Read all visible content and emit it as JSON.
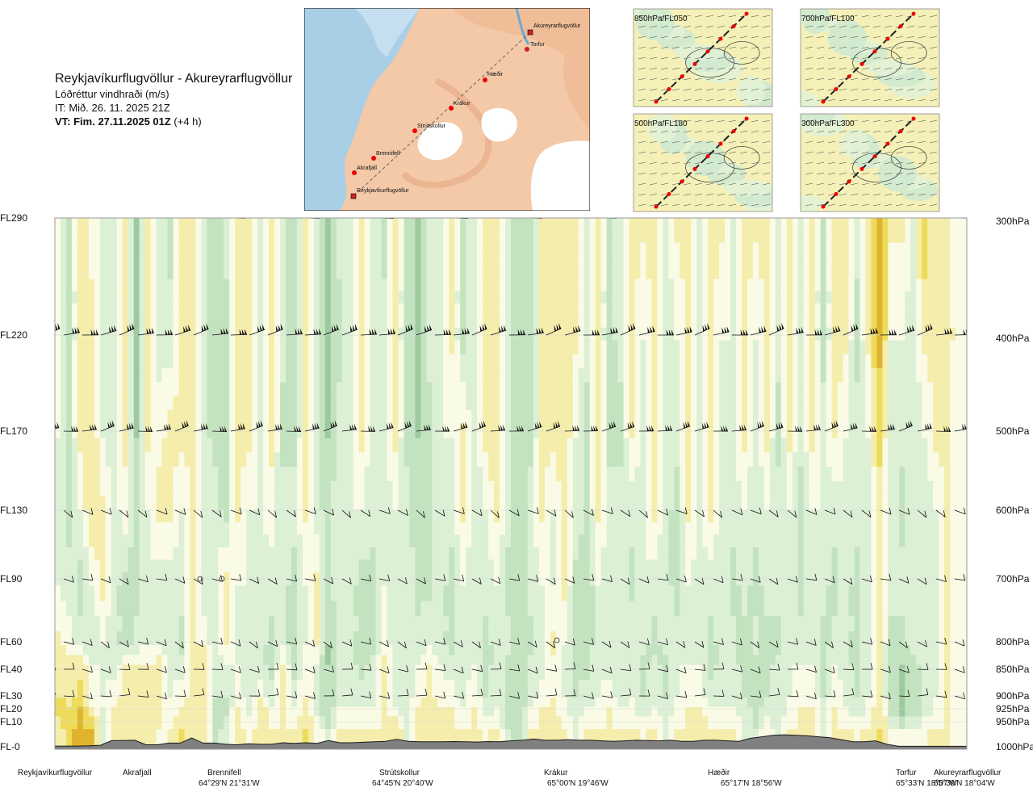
{
  "header": {
    "route": "Reykjavíkurflugvöllur - Akureyrarflugvöllur",
    "parameter": "Lóðréttur vindhraði (m/s)",
    "it": "IT: Mið. 26. 11. 2025 21Z",
    "vt_bold": "VT: Fim. 27.11.2025 01Z",
    "vt_suffix": " (+4 h)"
  },
  "map": {
    "places": [
      "Akureyrarflugvöllur",
      "Torfur",
      "Hæðir",
      "Krákur",
      "Strútskollur",
      "Brennifell",
      "Akrafjall",
      "Reykjavíkurflugvöllur"
    ]
  },
  "thumbnails": [
    {
      "label": "850hPa/FL050"
    },
    {
      "label": "700hPa/FL100"
    },
    {
      "label": "500hPa/FL180"
    },
    {
      "label": "300hPa/FL300"
    }
  ],
  "chart_data": {
    "type": "heatmap",
    "title": "Lóðréttur vindhraði (m/s)",
    "y_levels": [
      {
        "fl": "FL290",
        "hpa": "300hPa"
      },
      {
        "fl": "FL220",
        "hpa": "400hPa"
      },
      {
        "fl": "FL170",
        "hpa": "500hPa"
      },
      {
        "fl": "FL130",
        "hpa": "600hPa"
      },
      {
        "fl": "FL90",
        "hpa": "700hPa"
      },
      {
        "fl": "FL60",
        "hpa": "800hPa"
      },
      {
        "fl": "FL40",
        "hpa": "850hPa"
      },
      {
        "fl": "FL30",
        "hpa": "900hPa"
      },
      {
        "fl": "FL20",
        "hpa": "925hPa"
      },
      {
        "fl": "FL10",
        "hpa": "950hPa"
      },
      {
        "fl": "FL-0",
        "hpa": "1000hPa"
      }
    ],
    "waypoints": [
      {
        "name": "Reykjavíkurflugvöllur",
        "coord": ""
      },
      {
        "name": "Akrafjall",
        "coord": ""
      },
      {
        "name": "Brennifell",
        "coord": "64°29'N 21°31'W"
      },
      {
        "name": "Strútskollur",
        "coord": "64°45'N 20°40'W"
      },
      {
        "name": "Krákur",
        "coord": "65°00'N 19°46'W"
      },
      {
        "name": "Hæðir",
        "coord": "65°17'N 18°56'W"
      },
      {
        "name": "Torfur",
        "coord": "65°33'N 18°07'W"
      },
      {
        "name": "Akureyrarflugvöllur",
        "coord": "65°39'N 18°04'W"
      }
    ],
    "terrain_fl": [
      0.3,
      0.3,
      0.3,
      0.4,
      0.6,
      2.5,
      2.5,
      2.6,
      0.8,
      0.8,
      1.5,
      1.5,
      3.5,
      1.5,
      1.5,
      1.0,
      0.8,
      1.2,
      1.0,
      1.0,
      1.6,
      1.4,
      1.6,
      1.4,
      2.5,
      1.6,
      1.6,
      1.8,
      2.0,
      2.2,
      3.0,
      2.2,
      2.0,
      2.0,
      2.0,
      2.1,
      2.0,
      1.9,
      2.1,
      2.0,
      2.4,
      2.6,
      3.1,
      2.6,
      2.6,
      2.8,
      2.6,
      2.6,
      2.4,
      2.2,
      2.4,
      2.6,
      2.5,
      2.4,
      2.6,
      2.2,
      2.2,
      2.6,
      2.6,
      2.4,
      2.2,
      3.4,
      4.0,
      4.6,
      4.8,
      4.6,
      4.4,
      4.0,
      3.6,
      2.8,
      2.0,
      2.0,
      2.4,
      1.0,
      0.2,
      0.2,
      0.2,
      0.2,
      0.2,
      0.2,
      0.2
    ],
    "levels_fl": [
      0,
      20,
      40,
      60,
      90,
      130,
      170,
      220,
      290
    ],
    "columns_ms": [
      [
        0.1,
        0.3,
        0.2,
        0.1,
        -0.1,
        -0.1,
        -0.1,
        0.0,
        0.0
      ],
      [
        0.3,
        0.3,
        0.1,
        0.0,
        -0.2,
        -0.3,
        -0.3,
        -0.3,
        -0.3
      ],
      [
        0.8,
        0.5,
        0.2,
        -0.2,
        -0.3,
        -0.1,
        0.1,
        0.1,
        0.1
      ],
      [
        0.6,
        0.1,
        -0.1,
        -0.2,
        -0.1,
        0.2,
        0.2,
        0.1,
        0.0
      ],
      [
        -0.1,
        -0.1,
        -0.1,
        -0.1,
        0.1,
        0.1,
        -0.1,
        -0.1,
        -0.1
      ],
      [
        0.1,
        0.1,
        -0.2,
        -0.2,
        -0.2,
        -0.2,
        -0.2,
        -0.1,
        -0.1
      ],
      [
        0.1,
        0.1,
        0.1,
        -0.3,
        -0.3,
        0.0,
        0.1,
        0.1,
        0.1
      ],
      [
        0.2,
        0.1,
        0.1,
        -0.2,
        -0.3,
        -0.4,
        -0.5,
        -0.6,
        -0.5
      ],
      [
        0.1,
        0.1,
        0.1,
        -0.1,
        -0.1,
        -0.1,
        0.1,
        0.1,
        0.1
      ],
      [
        0.0,
        0.1,
        0.2,
        -0.2,
        -0.2,
        0.1,
        0.0,
        -0.2,
        -0.2
      ],
      [
        0.1,
        -0.1,
        -0.1,
        -0.2,
        -0.2,
        0.1,
        0.1,
        -0.2,
        -0.3
      ],
      [
        0.3,
        0.1,
        -0.2,
        -0.3,
        -0.2,
        -0.1,
        0.1,
        0.1,
        0.1
      ],
      [
        0.2,
        0.1,
        0.1,
        0.1,
        0.2,
        0.1,
        0.1,
        0.1,
        0.1
      ],
      [
        0.1,
        0.1,
        0.2,
        0.0,
        -0.2,
        -0.2,
        -0.2,
        -0.2,
        -0.2
      ],
      [
        -0.3,
        -0.3,
        -0.2,
        -0.2,
        -0.1,
        -0.2,
        -0.3,
        -0.4,
        -0.4
      ],
      [
        -0.1,
        -0.3,
        -0.2,
        0.1,
        0.1,
        -0.3,
        -0.3,
        -0.3,
        -0.2
      ],
      [
        0.1,
        0.1,
        -0.1,
        -0.1,
        -0.1,
        0.1,
        0.1,
        0.1,
        0.1
      ],
      [
        0.1,
        -0.2,
        -0.2,
        -0.2,
        -0.1,
        -0.1,
        0.1,
        0.1,
        0.1
      ],
      [
        0.1,
        0.2,
        -0.2,
        -0.2,
        -0.2,
        -0.1,
        -0.1,
        -0.2,
        -0.2
      ],
      [
        0.1,
        -0.1,
        -0.3,
        -0.3,
        -0.2,
        0.0,
        0.1,
        0.1,
        0.1
      ],
      [
        0.1,
        0.1,
        0.1,
        -0.1,
        -0.2,
        -0.2,
        -0.3,
        -0.2,
        -0.2
      ],
      [
        0.1,
        -0.1,
        -0.3,
        -0.4,
        -0.3,
        -0.2,
        -0.3,
        -0.4,
        -0.4
      ],
      [
        0.3,
        0.1,
        0.0,
        -0.1,
        -0.1,
        0.1,
        0.1,
        0.1,
        0.1
      ],
      [
        0.1,
        -0.2,
        -0.1,
        0.1,
        0.1,
        -0.2,
        -0.1,
        -0.1,
        -0.1
      ],
      [
        -0.1,
        -0.4,
        -0.5,
        -0.5,
        -0.3,
        -0.3,
        -0.5,
        -0.6,
        -0.5
      ],
      [
        0.1,
        -0.1,
        -0.2,
        -0.2,
        -0.1,
        -0.1,
        -0.2,
        -0.3,
        -0.2
      ],
      [
        0.2,
        -0.1,
        -0.2,
        -0.2,
        -0.2,
        -0.1,
        -0.1,
        -0.2,
        -0.1
      ],
      [
        0.1,
        -0.1,
        -0.3,
        -0.3,
        -0.3,
        -0.1,
        0.1,
        0.1,
        0.1
      ],
      [
        0.1,
        -0.1,
        -0.2,
        -0.3,
        -0.3,
        -0.2,
        -0.2,
        -0.2,
        -0.2
      ],
      [
        0.1,
        0.1,
        0.1,
        0.0,
        -0.1,
        -0.2,
        -0.1,
        -0.2,
        -0.3
      ],
      [
        0.3,
        -0.1,
        -0.2,
        -0.2,
        -0.2,
        -0.1,
        0.1,
        0.1,
        0.1
      ],
      [
        -0.1,
        -0.2,
        -0.2,
        -0.1,
        -0.1,
        -0.2,
        -0.3,
        -0.3,
        -0.3
      ],
      [
        0.1,
        0.1,
        -0.1,
        -0.2,
        -0.3,
        -0.4,
        -0.5,
        -0.6,
        -0.5
      ],
      [
        0.1,
        0.1,
        0.1,
        -0.1,
        -0.3,
        -0.3,
        -0.3,
        -0.2,
        -0.1
      ],
      [
        0.2,
        0.1,
        -0.1,
        -0.2,
        -0.2,
        -0.1,
        -0.1,
        -0.1,
        -0.2
      ],
      [
        0.1,
        0.1,
        -0.2,
        -0.3,
        -0.3,
        -0.2,
        -0.1,
        0.1,
        0.1
      ],
      [
        0.1,
        -0.1,
        -0.2,
        -0.2,
        -0.1,
        0.1,
        0.1,
        -0.3,
        -0.3
      ],
      [
        0.1,
        0.1,
        -0.1,
        -0.1,
        -0.2,
        -0.2,
        -0.2,
        -0.2,
        -0.1
      ],
      [
        0.1,
        -0.2,
        -0.3,
        -0.3,
        -0.2,
        -0.1,
        0.1,
        0.1,
        0.1
      ],
      [
        0.1,
        -0.1,
        -0.2,
        -0.2,
        -0.1,
        0.1,
        0.2,
        0.1,
        0.1
      ],
      [
        -0.2,
        -0.3,
        -0.3,
        -0.2,
        -0.3,
        -0.2,
        -0.1,
        -0.1,
        -0.2
      ],
      [
        -0.3,
        -0.4,
        -0.5,
        -0.4,
        -0.3,
        -0.3,
        -0.4,
        -0.4,
        -0.3
      ],
      [
        0.1,
        -0.1,
        -0.2,
        -0.3,
        -0.2,
        -0.2,
        -0.3,
        -0.4,
        -0.3
      ],
      [
        0.1,
        0.1,
        -0.2,
        -0.2,
        -0.1,
        0.1,
        0.1,
        0.1,
        0.1
      ],
      [
        0.2,
        0.1,
        0.0,
        0.1,
        -0.1,
        -0.1,
        0.1,
        0.1,
        0.1
      ],
      [
        0.1,
        -0.1,
        -0.1,
        -0.1,
        0.1,
        0.1,
        0.2,
        0.1,
        0.1
      ],
      [
        -0.1,
        -0.2,
        -0.3,
        -0.3,
        -0.3,
        -0.1,
        -0.1,
        0.1,
        0.1
      ],
      [
        0.1,
        -0.1,
        -0.3,
        -0.4,
        -0.4,
        -0.3,
        -0.3,
        -0.2,
        -0.2
      ],
      [
        0.1,
        -0.1,
        -0.1,
        -0.1,
        -0.1,
        0.1,
        0.1,
        0.1,
        0.1
      ],
      [
        0.1,
        0.1,
        -0.2,
        -0.2,
        -0.2,
        -0.2,
        -0.3,
        -0.3,
        -0.3
      ],
      [
        0.1,
        -0.1,
        -0.2,
        -0.1,
        -0.1,
        -0.2,
        -0.3,
        -0.2,
        -0.1
      ],
      [
        0.1,
        -0.1,
        -0.1,
        -0.1,
        -0.3,
        -0.2,
        0.1,
        0.1,
        0.1
      ],
      [
        0.1,
        -0.2,
        -0.3,
        -0.2,
        -0.1,
        -0.1,
        -0.2,
        -0.1,
        0.1
      ],
      [
        0.1,
        -0.1,
        -0.2,
        -0.3,
        -0.2,
        0.1,
        0.1,
        0.1,
        0.1
      ],
      [
        -0.1,
        -0.2,
        -0.3,
        -0.2,
        -0.2,
        -0.2,
        -0.2,
        -0.2,
        -0.2
      ],
      [
        0.1,
        -0.1,
        -0.1,
        -0.2,
        -0.3,
        -0.3,
        -0.2,
        -0.1,
        0.1
      ],
      [
        0.1,
        0.1,
        -0.1,
        -0.1,
        -0.1,
        0.1,
        0.1,
        0.1,
        0.1
      ],
      [
        0.2,
        0.1,
        -0.1,
        -0.2,
        -0.2,
        -0.1,
        -0.1,
        -0.2,
        -0.2
      ],
      [
        0.1,
        -0.1,
        -0.3,
        -0.3,
        -0.2,
        0.1,
        0.1,
        0.1,
        0.1
      ],
      [
        0.1,
        -0.1,
        -0.2,
        -0.2,
        -0.2,
        -0.2,
        -0.2,
        -0.1,
        0.1
      ],
      [
        0.2,
        -0.1,
        -0.2,
        -0.2,
        -0.3,
        -0.2,
        -0.1,
        -0.1,
        -0.1
      ],
      [
        -0.1,
        -0.2,
        -0.3,
        -0.3,
        -0.2,
        -0.1,
        0.1,
        0.1,
        0.1
      ],
      [
        -0.2,
        -0.3,
        -0.3,
        -0.2,
        -0.3,
        -0.2,
        -0.2,
        -0.1,
        0.1
      ],
      [
        0.1,
        -0.2,
        -0.3,
        -0.3,
        -0.2,
        -0.1,
        0.1,
        0.1,
        0.1
      ],
      [
        -0.1,
        -0.2,
        -0.2,
        -0.3,
        -0.2,
        -0.2,
        -0.3,
        -0.2,
        -0.1
      ],
      [
        0.1,
        -0.1,
        -0.1,
        -0.2,
        -0.2,
        -0.1,
        0.1,
        0.1,
        0.1
      ],
      [
        0.1,
        0.1,
        -0.1,
        -0.2,
        -0.3,
        -0.3,
        -0.2,
        -0.1,
        -0.1
      ],
      [
        0.2,
        0.1,
        -0.1,
        -0.2,
        -0.2,
        -0.1,
        0.1,
        0.1,
        0.1
      ],
      [
        -0.1,
        -0.2,
        -0.3,
        -0.3,
        -0.2,
        -0.1,
        -0.2,
        -0.3,
        -0.3
      ],
      [
        0.1,
        0.1,
        -0.1,
        -0.2,
        -0.3,
        -0.2,
        0.1,
        0.1,
        0.1
      ],
      [
        0.1,
        -0.1,
        -0.2,
        -0.2,
        -0.2,
        -0.1,
        -0.1,
        0.1,
        0.1
      ],
      [
        0.1,
        -0.2,
        -0.3,
        -0.3,
        -0.3,
        -0.2,
        -0.2,
        -0.3,
        -0.2
      ],
      [
        0.1,
        -0.1,
        -0.1,
        -0.1,
        -0.2,
        -0.2,
        -0.1,
        0.1,
        0.2
      ],
      [
        0.3,
        0.2,
        0.1,
        0.1,
        0.1,
        0.2,
        0.3,
        0.6,
        0.8
      ],
      [
        0.1,
        -0.3,
        -0.4,
        -0.3,
        -0.2,
        -0.2,
        -0.2,
        -0.1,
        0.1
      ],
      [
        0.1,
        -0.6,
        -0.5,
        -0.3,
        -0.2,
        -0.3,
        -0.2,
        -0.1,
        0.1
      ],
      [
        0.1,
        -0.4,
        -0.3,
        -0.2,
        -0.2,
        -0.2,
        -0.2,
        -0.2,
        -0.1
      ],
      [
        0.1,
        -0.2,
        -0.2,
        -0.2,
        -0.2,
        -0.2,
        -0.1,
        0.1,
        0.4
      ],
      [
        0.1,
        -0.1,
        -0.1,
        -0.1,
        -0.1,
        -0.1,
        0.1,
        0.1,
        0.1
      ],
      [
        0.1,
        0.1,
        0.1,
        0.1,
        0.1,
        0.1,
        0.1,
        0.1,
        0.1
      ],
      [
        0.0,
        0.0,
        0.0,
        0.0,
        0.0,
        0.0,
        0.0,
        0.0,
        0.0
      ]
    ],
    "color_scale": {
      "thresholds": [
        -0.5,
        -0.25,
        -0.1,
        0.05,
        0.25,
        0.5
      ],
      "colors": [
        "#9dc99f",
        "#c3e3c0",
        "#dcf0d6",
        "#fafbe6",
        "#f5edac",
        "#eddc5a",
        "#e0b32e"
      ]
    },
    "terrain_color": "#808080"
  }
}
